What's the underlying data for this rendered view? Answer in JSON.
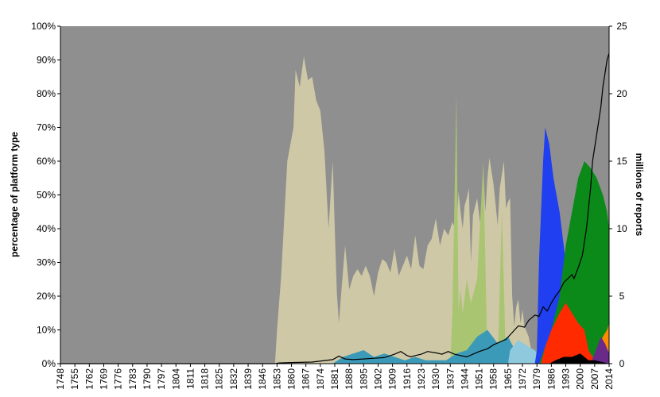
{
  "chart_data": {
    "type": "area",
    "title": "",
    "xlabel": "",
    "ylabel": "percentage of platform type",
    "y2label": "millions of reports",
    "xlim": [
      1748,
      2014
    ],
    "ylim": [
      0,
      100
    ],
    "y2lim": [
      0,
      25
    ],
    "x_tick_labels": [
      "1748",
      "1755",
      "1762",
      "1769",
      "1776",
      "1783",
      "1790",
      "1797",
      "1804",
      "1811",
      "1818",
      "1825",
      "1832",
      "1839",
      "1846",
      "1853",
      "1860",
      "1867",
      "1874",
      "1881",
      "1888",
      "1895",
      "1902",
      "1909",
      "1916",
      "1923",
      "1930",
      "1937",
      "1944",
      "1951",
      "1958",
      "1965",
      "1972",
      "1979",
      "1986",
      "1993",
      "2000",
      "2007",
      "2014"
    ],
    "y_tick_labels": [
      "0%",
      "10%",
      "20%",
      "30%",
      "40%",
      "50%",
      "60%",
      "70%",
      "80%",
      "90%",
      "100%"
    ],
    "y2_tick_labels": [
      "0",
      "5",
      "10",
      "15",
      "20",
      "25"
    ],
    "grid": false,
    "legend": "none",
    "colors": {
      "gray": "#8f8f8f",
      "beige": "#cfc8a6",
      "teal": "#3b9ab8",
      "lightblue": "#8ec9de",
      "olive": "#a9c572",
      "rose": "#cd7e6f",
      "yellow": "#ffff00",
      "maroon": "#8b2e2e",
      "blue": "#1f3ff0",
      "green": "#0b8a1a",
      "red": "#ff2a00",
      "orange": "#ff8a00",
      "purple": "#6a2a8a",
      "black": "#000000"
    },
    "series": [
      {
        "color_key": "gray",
        "values": [
          [
            1748,
            100
          ],
          [
            1852,
            100
          ],
          [
            1853,
            100
          ],
          [
            2014,
            100
          ]
        ]
      },
      {
        "color_key": "beige",
        "values": [
          [
            1748,
            0
          ],
          [
            1852,
            0
          ],
          [
            1853,
            10
          ],
          [
            1855,
            26
          ],
          [
            1858,
            60
          ],
          [
            1861,
            70
          ],
          [
            1862,
            87
          ],
          [
            1864,
            82
          ],
          [
            1866,
            91
          ],
          [
            1868,
            84
          ],
          [
            1870,
            85
          ],
          [
            1872,
            78
          ],
          [
            1874,
            75
          ],
          [
            1876,
            63
          ],
          [
            1878,
            40
          ],
          [
            1880,
            60
          ],
          [
            1881,
            40
          ],
          [
            1882,
            21
          ],
          [
            1883,
            12
          ],
          [
            1884,
            20
          ],
          [
            1886,
            35
          ],
          [
            1888,
            22
          ],
          [
            1890,
            26
          ],
          [
            1892,
            28
          ],
          [
            1894,
            26
          ],
          [
            1896,
            29
          ],
          [
            1898,
            26
          ],
          [
            1900,
            20
          ],
          [
            1902,
            27
          ],
          [
            1904,
            31
          ],
          [
            1906,
            30
          ],
          [
            1908,
            27
          ],
          [
            1910,
            34
          ],
          [
            1912,
            26
          ],
          [
            1914,
            29
          ],
          [
            1916,
            32
          ],
          [
            1918,
            28
          ],
          [
            1920,
            38
          ],
          [
            1922,
            29
          ],
          [
            1924,
            28
          ],
          [
            1926,
            35
          ],
          [
            1928,
            37
          ],
          [
            1930,
            43
          ],
          [
            1932,
            35
          ],
          [
            1934,
            40
          ],
          [
            1936,
            38
          ],
          [
            1938,
            42
          ],
          [
            1940,
            39
          ],
          [
            1941,
            51
          ],
          [
            1942,
            45
          ],
          [
            1943,
            40
          ],
          [
            1944,
            47
          ],
          [
            1945,
            49
          ],
          [
            1946,
            52
          ],
          [
            1947,
            30
          ],
          [
            1948,
            44
          ],
          [
            1950,
            49
          ],
          [
            1952,
            39
          ],
          [
            1953,
            57
          ],
          [
            1954,
            45
          ],
          [
            1955,
            55
          ],
          [
            1956,
            61
          ],
          [
            1958,
            53
          ],
          [
            1960,
            41
          ],
          [
            1961,
            52
          ],
          [
            1962,
            56
          ],
          [
            1963,
            60
          ],
          [
            1964,
            46
          ],
          [
            1965,
            48
          ],
          [
            1966,
            49
          ],
          [
            1967,
            20
          ],
          [
            1968,
            11
          ],
          [
            1969,
            17
          ],
          [
            1970,
            19
          ],
          [
            1971,
            12
          ],
          [
            1972,
            16
          ],
          [
            1973,
            11
          ],
          [
            1975,
            8
          ],
          [
            1977,
            2
          ],
          [
            1978,
            0.5
          ],
          [
            1980,
            0.3
          ],
          [
            1984,
            0
          ],
          [
            2014,
            0
          ]
        ]
      },
      {
        "color_key": "olive",
        "values": [
          [
            1937,
            0
          ],
          [
            1938,
            15
          ],
          [
            1940,
            80
          ],
          [
            1941,
            16
          ],
          [
            1942,
            22
          ],
          [
            1943,
            15
          ],
          [
            1945,
            25
          ],
          [
            1947,
            18
          ],
          [
            1950,
            25
          ],
          [
            1953,
            60
          ],
          [
            1955,
            0
          ],
          [
            1960,
            0
          ],
          [
            1962,
            45
          ],
          [
            1964,
            0
          ],
          [
            2014,
            0
          ]
        ]
      },
      {
        "color_key": "teal",
        "values": [
          [
            1880,
            0
          ],
          [
            1885,
            2
          ],
          [
            1890,
            3
          ],
          [
            1895,
            4
          ],
          [
            1900,
            2
          ],
          [
            1905,
            3
          ],
          [
            1910,
            2
          ],
          [
            1915,
            1
          ],
          [
            1920,
            2
          ],
          [
            1925,
            1
          ],
          [
            1930,
            1
          ],
          [
            1935,
            1
          ],
          [
            1940,
            3
          ],
          [
            1945,
            4
          ],
          [
            1950,
            8
          ],
          [
            1955,
            10
          ],
          [
            1960,
            6
          ],
          [
            1965,
            8
          ],
          [
            1970,
            2
          ],
          [
            1975,
            1
          ],
          [
            1980,
            0
          ],
          [
            2014,
            0
          ]
        ]
      },
      {
        "color_key": "lightblue",
        "values": [
          [
            1965,
            0
          ],
          [
            1966,
            4
          ],
          [
            1970,
            7
          ],
          [
            1975,
            5
          ],
          [
            1978,
            4
          ],
          [
            1980,
            2
          ],
          [
            1982,
            1
          ],
          [
            1984,
            0
          ],
          [
            2014,
            0
          ]
        ]
      },
      {
        "color_key": "blue",
        "values": [
          [
            1978,
            0
          ],
          [
            1979,
            4
          ],
          [
            1980,
            30
          ],
          [
            1981,
            45
          ],
          [
            1982,
            60
          ],
          [
            1983,
            70
          ],
          [
            1985,
            65
          ],
          [
            1987,
            55
          ],
          [
            1990,
            45
          ],
          [
            1993,
            30
          ],
          [
            1996,
            25
          ],
          [
            1999,
            20
          ],
          [
            2002,
            14
          ],
          [
            2004,
            11
          ],
          [
            2006,
            10
          ],
          [
            2008,
            12
          ],
          [
            2010,
            18
          ],
          [
            2012,
            20
          ],
          [
            2014,
            25
          ],
          [
            2014,
            0
          ]
        ]
      },
      {
        "color_key": "green",
        "values": [
          [
            1980,
            0
          ],
          [
            1983,
            5
          ],
          [
            1986,
            10
          ],
          [
            1990,
            20
          ],
          [
            1993,
            35
          ],
          [
            1996,
            45
          ],
          [
            1999,
            55
          ],
          [
            2002,
            60
          ],
          [
            2005,
            58
          ],
          [
            2008,
            55
          ],
          [
            2011,
            50
          ],
          [
            2013,
            45
          ],
          [
            2014,
            40
          ]
        ]
      },
      {
        "color_key": "red",
        "values": [
          [
            1981,
            0
          ],
          [
            1983,
            5
          ],
          [
            1986,
            10
          ],
          [
            1990,
            15
          ],
          [
            1993,
            18
          ],
          [
            1996,
            15
          ],
          [
            1999,
            12
          ],
          [
            2002,
            10
          ],
          [
            2004,
            4
          ],
          [
            2006,
            2
          ],
          [
            2008,
            1
          ],
          [
            2014,
            0
          ]
        ]
      },
      {
        "color_key": "orange",
        "values": [
          [
            2005,
            0
          ],
          [
            2007,
            2
          ],
          [
            2009,
            5
          ],
          [
            2011,
            8
          ],
          [
            2013,
            10
          ],
          [
            2014,
            12
          ]
        ]
      },
      {
        "color_key": "purple",
        "values": [
          [
            2005,
            0
          ],
          [
            2007,
            3
          ],
          [
            2010,
            8
          ],
          [
            2012,
            6
          ],
          [
            2014,
            3
          ]
        ]
      },
      {
        "color_key": "black",
        "values": [
          [
            1985,
            0
          ],
          [
            1988,
            1
          ],
          [
            1992,
            2
          ],
          [
            1996,
            2
          ],
          [
            2000,
            3
          ],
          [
            2004,
            1
          ],
          [
            2007,
            1
          ],
          [
            2014,
            0
          ]
        ]
      }
    ],
    "line_series": {
      "color_key": "black",
      "axis": "right",
      "values": [
        [
          1748,
          0
        ],
        [
          1852,
          0
        ],
        [
          1854,
          0.05
        ],
        [
          1860,
          0.08
        ],
        [
          1870,
          0.12
        ],
        [
          1880,
          0.3
        ],
        [
          1883,
          0.55
        ],
        [
          1886,
          0.35
        ],
        [
          1890,
          0.3
        ],
        [
          1895,
          0.35
        ],
        [
          1900,
          0.4
        ],
        [
          1905,
          0.45
        ],
        [
          1910,
          0.7
        ],
        [
          1913,
          0.9
        ],
        [
          1916,
          0.6
        ],
        [
          1918,
          0.5
        ],
        [
          1920,
          0.6
        ],
        [
          1923,
          0.7
        ],
        [
          1926,
          0.9
        ],
        [
          1930,
          0.8
        ],
        [
          1933,
          0.7
        ],
        [
          1936,
          0.9
        ],
        [
          1939,
          0.7
        ],
        [
          1942,
          0.6
        ],
        [
          1945,
          0.5
        ],
        [
          1948,
          0.7
        ],
        [
          1951,
          0.9
        ],
        [
          1955,
          1.1
        ],
        [
          1958,
          1.4
        ],
        [
          1961,
          1.6
        ],
        [
          1964,
          1.8
        ],
        [
          1967,
          2.3
        ],
        [
          1970,
          2.8
        ],
        [
          1973,
          2.7
        ],
        [
          1975,
          3.2
        ],
        [
          1978,
          3.6
        ],
        [
          1980,
          3.5
        ],
        [
          1982,
          4.2
        ],
        [
          1984,
          3.9
        ],
        [
          1986,
          4.5
        ],
        [
          1988,
          5
        ],
        [
          1990,
          5.4
        ],
        [
          1992,
          6
        ],
        [
          1994,
          6.3
        ],
        [
          1996,
          6.6
        ],
        [
          1997,
          6.3
        ],
        [
          1999,
          7.1
        ],
        [
          2001,
          8
        ],
        [
          2003,
          10
        ],
        [
          2005,
          13
        ],
        [
          2006,
          15
        ],
        [
          2008,
          17
        ],
        [
          2010,
          19
        ],
        [
          2011,
          20.5
        ],
        [
          2012,
          21.5
        ],
        [
          2013,
          22.5
        ],
        [
          2014,
          23
        ]
      ]
    }
  }
}
